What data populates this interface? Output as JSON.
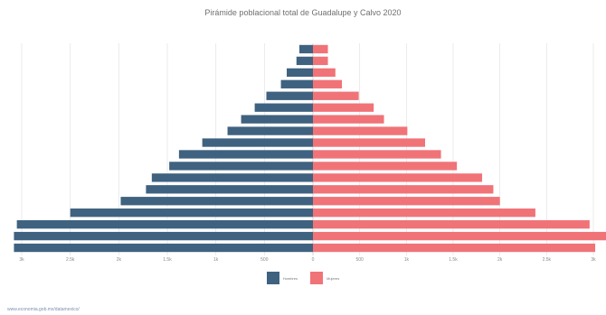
{
  "title": "Pirámide poblacional total de Guadalupe y Calvo 2020",
  "source": "www.economia.gob.mx/datamexico/",
  "colors": {
    "male": "#3f6280",
    "female": "#f07378",
    "grid": "#e6e6e6",
    "axis_text": "#8a8a8a"
  },
  "chart_data": {
    "type": "bar",
    "orientation": "horizontal-pyramid",
    "x_ticks": [
      "3k",
      "2.5k",
      "2k",
      "1.5k",
      "1k",
      "500",
      "0",
      "500",
      "1k",
      "1.5k",
      "2k",
      "2.5k",
      "3k"
    ],
    "xlim": [
      -3000,
      3000
    ],
    "grid": true,
    "legend_position": "bottom",
    "series": [
      {
        "name": "Hombres",
        "side": "left",
        "values": [
          3080,
          3080,
          3050,
          2500,
          1980,
          1720,
          1660,
          1480,
          1380,
          1140,
          880,
          740,
          600,
          480,
          330,
          270,
          170,
          140
        ]
      },
      {
        "name": "Mujeres",
        "side": "right",
        "values": [
          3020,
          3140,
          2960,
          2380,
          2000,
          1930,
          1810,
          1540,
          1370,
          1200,
          1010,
          760,
          650,
          490,
          310,
          240,
          160,
          160
        ]
      }
    ]
  }
}
